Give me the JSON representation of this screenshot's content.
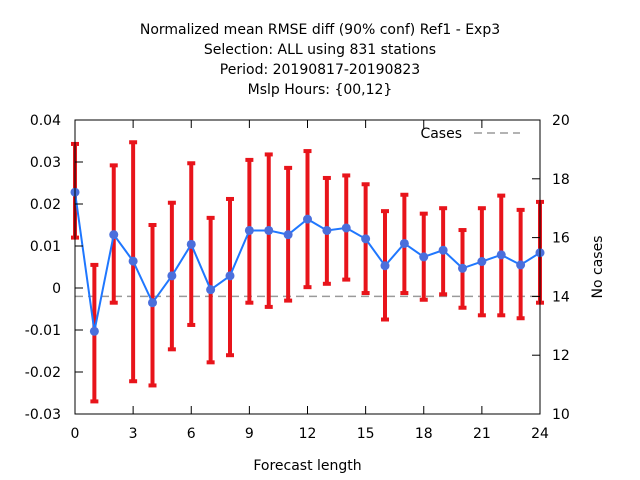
{
  "chart_data": {
    "type": "line",
    "title_lines": [
      "Normalized mean RMSE diff (90% conf) Ref1 - Exp3",
      "Selection: ALL using   831 stations",
      "Period: 20190817-20190823",
      "Mslp   Hours: {00,12}"
    ],
    "xlabel": "Forecast length",
    "ylabel": "",
    "y2label": "No cases",
    "xlim": [
      0,
      24
    ],
    "ylim": [
      -0.03,
      0.04
    ],
    "y2lim": [
      10,
      20
    ],
    "xticks": [
      0,
      3,
      6,
      9,
      12,
      15,
      18,
      21,
      24
    ],
    "yticks": [
      -0.03,
      -0.02,
      -0.01,
      0,
      0.01,
      0.02,
      0.03,
      0.04
    ],
    "ytick_labels": [
      "-0.03",
      "-0.02",
      "-0.01",
      "0",
      "0.01",
      "0.02",
      "0.03",
      "0.04"
    ],
    "y2ticks": [
      10,
      12,
      14,
      16,
      18,
      20
    ],
    "grid": false,
    "legend_position": "top-right",
    "series": [
      {
        "kind": "mean_diff",
        "color": "#1f77ff",
        "marker_color": "#4a6fdc",
        "x": [
          0,
          1,
          2,
          3,
          4,
          5,
          6,
          7,
          8,
          9,
          10,
          11,
          12,
          13,
          14,
          15,
          16,
          17,
          18,
          19,
          20,
          21,
          22,
          23,
          24
        ],
        "y": [
          0.0228,
          -0.0103,
          0.0127,
          0.0064,
          -0.0035,
          0.0029,
          0.0104,
          -0.0004,
          0.0029,
          0.0137,
          0.0137,
          0.0127,
          0.0164,
          0.0137,
          0.0143,
          0.0117,
          0.0053,
          0.0106,
          0.0074,
          0.009,
          0.0047,
          0.0063,
          0.0079,
          0.0055,
          0.0084
        ],
        "err_low": [
          0.012,
          -0.027,
          -0.0035,
          -0.0222,
          -0.0232,
          -0.0146,
          -0.0088,
          -0.0177,
          -0.016,
          -0.0035,
          -0.0045,
          -0.003,
          0.0002,
          0.001,
          0.002,
          -0.0012,
          -0.0075,
          -0.0012,
          -0.0028,
          -0.0015,
          -0.0047,
          -0.0065,
          -0.0065,
          -0.0072,
          -0.0035
        ],
        "err_high": [
          0.0343,
          0.0055,
          0.0292,
          0.0347,
          0.015,
          0.0203,
          0.0297,
          0.0167,
          0.0212,
          0.0305,
          0.0318,
          0.0286,
          0.0326,
          0.0262,
          0.0268,
          0.0247,
          0.0183,
          0.0222,
          0.0177,
          0.019,
          0.0138,
          0.019,
          0.022,
          0.0186,
          0.0205
        ],
        "err_color": "#e8141b"
      },
      {
        "name": "Cases",
        "axis": "y2",
        "color": "#9a9a9a",
        "x": [
          0,
          1,
          2,
          3,
          4,
          5,
          6,
          7,
          8,
          9,
          10,
          11,
          12,
          13,
          14,
          15,
          16,
          17,
          18,
          19,
          20,
          21,
          22,
          23,
          24
        ],
        "y": [
          14,
          14,
          14,
          14,
          14,
          14,
          14,
          14,
          14,
          14,
          14,
          14,
          14,
          14,
          14,
          14,
          14,
          14,
          14,
          14,
          14,
          14,
          14,
          14,
          14
        ]
      }
    ]
  }
}
